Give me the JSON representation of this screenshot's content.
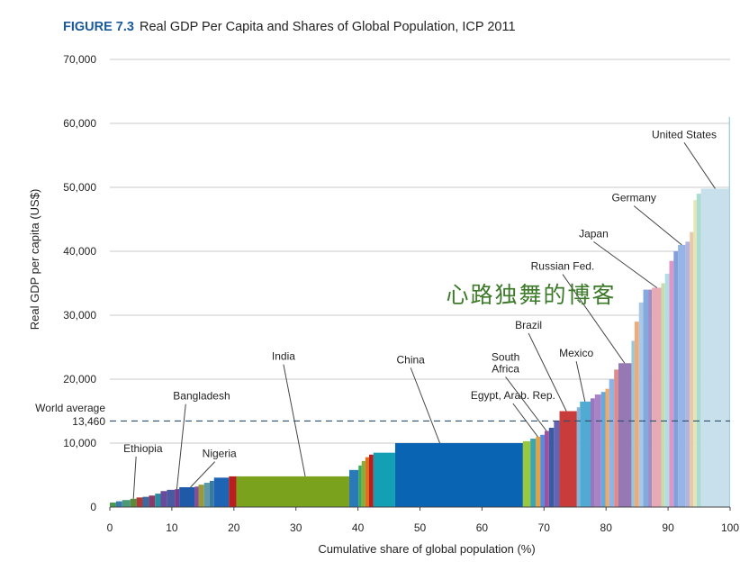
{
  "title": {
    "prefix": "FIGURE 7.3",
    "text": "Real GDP Per Capita and Shares of Global Population, ICP 2011"
  },
  "watermark": "心路独舞的博客",
  "chart_data": {
    "type": "bar",
    "title": "Real GDP Per Capita and Shares of Global Population, ICP 2011",
    "xlabel": "Cumulative share of global population (%)",
    "ylabel": "Real GDP per capita (US$)",
    "xlim": [
      0,
      100
    ],
    "ylim": [
      0,
      70000
    ],
    "x_ticks": [
      0,
      10,
      20,
      30,
      40,
      50,
      60,
      70,
      80,
      90,
      100
    ],
    "y_ticks": [
      {
        "value": 0,
        "label": "0"
      },
      {
        "value": 10000,
        "label": "10,000"
      },
      {
        "value": 20000,
        "label": "20,000"
      },
      {
        "value": 30000,
        "label": "30,000"
      },
      {
        "value": 40000,
        "label": "40,000"
      },
      {
        "value": 50000,
        "label": "50,000"
      },
      {
        "value": 60000,
        "label": "60,000"
      },
      {
        "value": 70000,
        "label": "70,000"
      }
    ],
    "grid": true,
    "reference_line": {
      "value": 13460,
      "label_line1": "World average",
      "label_line2": "13,460",
      "style": "dashed"
    },
    "bars": [
      {
        "x0": 0.0,
        "x1": 1.0,
        "value": 700,
        "color": "#4a9a4a"
      },
      {
        "x0": 1.0,
        "x1": 2.0,
        "value": 900,
        "color": "#3a7ab0"
      },
      {
        "x0": 2.0,
        "x1": 3.3,
        "value": 1100,
        "color": "#4a9a7a"
      },
      {
        "x0": 3.3,
        "x1": 4.3,
        "value": 1300,
        "color": "#5a8a3a"
      },
      {
        "x0": 4.3,
        "x1": 5.3,
        "value": 1500,
        "color": "#b03a3a"
      },
      {
        "x0": 5.3,
        "x1": 6.3,
        "value": 1600,
        "color": "#3a6aa0"
      },
      {
        "x0": 6.3,
        "x1": 7.3,
        "value": 1800,
        "color": "#8a3a6a"
      },
      {
        "x0": 7.3,
        "x1": 8.2,
        "value": 2100,
        "color": "#2a8aa0"
      },
      {
        "x0": 8.2,
        "x1": 9.2,
        "value": 2500,
        "color": "#6a4a9a"
      },
      {
        "x0": 9.2,
        "x1": 10.5,
        "value": 2700,
        "color": "#4a5aa0"
      },
      {
        "x0": 10.5,
        "x1": 11.2,
        "value": 2800,
        "color": "#7a3a8a"
      },
      {
        "x0": 11.2,
        "x1": 13.7,
        "value": 3100,
        "color": "#1e5aa8"
      },
      {
        "x0": 13.7,
        "x1": 14.3,
        "value": 3200,
        "color": "#8a4a9a"
      },
      {
        "x0": 14.3,
        "x1": 15.2,
        "value": 3500,
        "color": "#9a9a3a"
      },
      {
        "x0": 15.2,
        "x1": 16.1,
        "value": 3800,
        "color": "#5a9aaa"
      },
      {
        "x0": 16.1,
        "x1": 16.8,
        "value": 4100,
        "color": "#3a7aa0"
      },
      {
        "x0": 16.8,
        "x1": 19.2,
        "value": 4600,
        "color": "#1e64b4"
      },
      {
        "x0": 19.2,
        "x1": 20.4,
        "value": 4800,
        "color": "#b81e1e"
      },
      {
        "x0": 20.4,
        "x1": 38.6,
        "value": 4800,
        "color": "#7aa21c"
      },
      {
        "x0": 38.6,
        "x1": 40.1,
        "value": 5800,
        "color": "#2a7ab8"
      },
      {
        "x0": 40.1,
        "x1": 40.6,
        "value": 6500,
        "color": "#3aaa5a"
      },
      {
        "x0": 40.6,
        "x1": 41.2,
        "value": 7200,
        "color": "#8aaa3a"
      },
      {
        "x0": 41.2,
        "x1": 41.8,
        "value": 7800,
        "color": "#e07020"
      },
      {
        "x0": 41.8,
        "x1": 42.5,
        "value": 8200,
        "color": "#b81e1e"
      },
      {
        "x0": 42.5,
        "x1": 46.0,
        "value": 8500,
        "color": "#14a0b4"
      },
      {
        "x0": 46.0,
        "x1": 66.6,
        "value": 10000,
        "color": "#0a64b4"
      },
      {
        "x0": 66.6,
        "x1": 67.8,
        "value": 10300,
        "color": "#9ac83c"
      },
      {
        "x0": 67.8,
        "x1": 68.7,
        "value": 10700,
        "color": "#3ca5b4"
      },
      {
        "x0": 68.7,
        "x1": 69.4,
        "value": 11000,
        "color": "#e6a03c"
      },
      {
        "x0": 69.4,
        "x1": 70.1,
        "value": 11300,
        "color": "#5a8cdc"
      },
      {
        "x0": 70.1,
        "x1": 70.8,
        "value": 11900,
        "color": "#a050a0"
      },
      {
        "x0": 70.8,
        "x1": 71.6,
        "value": 12400,
        "color": "#3c5aa0"
      },
      {
        "x0": 71.6,
        "x1": 72.5,
        "value": 13500,
        "color": "#6464b4"
      },
      {
        "x0": 72.5,
        "x1": 75.3,
        "value": 15000,
        "color": "#c83c3c"
      },
      {
        "x0": 75.3,
        "x1": 75.8,
        "value": 15600,
        "color": "#82b4dc"
      },
      {
        "x0": 75.8,
        "x1": 77.5,
        "value": 16500,
        "color": "#50aad2"
      },
      {
        "x0": 77.5,
        "x1": 78.2,
        "value": 17000,
        "color": "#9678be"
      },
      {
        "x0": 78.2,
        "x1": 79.2,
        "value": 17600,
        "color": "#aa82c8"
      },
      {
        "x0": 79.2,
        "x1": 79.9,
        "value": 18000,
        "color": "#64aadc"
      },
      {
        "x0": 79.9,
        "x1": 80.5,
        "value": 18500,
        "color": "#f0aa64"
      },
      {
        "x0": 80.5,
        "x1": 81.3,
        "value": 20000,
        "color": "#8cb4e6"
      },
      {
        "x0": 81.3,
        "x1": 82.0,
        "value": 21500,
        "color": "#dc8c8c"
      },
      {
        "x0": 82.0,
        "x1": 84.1,
        "value": 22500,
        "color": "#9678b4"
      },
      {
        "x0": 84.1,
        "x1": 84.6,
        "value": 26000,
        "color": "#96c8dc"
      },
      {
        "x0": 84.6,
        "x1": 85.3,
        "value": 29000,
        "color": "#f0aa78"
      },
      {
        "x0": 85.3,
        "x1": 86.0,
        "value": 32000,
        "color": "#aac8e6"
      },
      {
        "x0": 86.0,
        "x1": 86.8,
        "value": 34000,
        "color": "#82aadc"
      },
      {
        "x0": 86.8,
        "x1": 87.4,
        "value": 34000,
        "color": "#a08cc8"
      },
      {
        "x0": 87.4,
        "x1": 88.9,
        "value": 34300,
        "color": "#e6aab4"
      },
      {
        "x0": 88.9,
        "x1": 89.5,
        "value": 35000,
        "color": "#c8dcaa"
      },
      {
        "x0": 89.5,
        "x1": 90.2,
        "value": 36500,
        "color": "#b4dce6"
      },
      {
        "x0": 90.2,
        "x1": 90.9,
        "value": 38500,
        "color": "#dc96c8"
      },
      {
        "x0": 90.9,
        "x1": 91.6,
        "value": 40000,
        "color": "#82a0dc"
      },
      {
        "x0": 91.6,
        "x1": 92.8,
        "value": 41000,
        "color": "#96b4e6"
      },
      {
        "x0": 92.8,
        "x1": 93.5,
        "value": 41500,
        "color": "#b4b4dc"
      },
      {
        "x0": 93.5,
        "x1": 94.1,
        "value": 43000,
        "color": "#e6c8aa"
      },
      {
        "x0": 94.1,
        "x1": 94.6,
        "value": 48000,
        "color": "#e6e6b4"
      },
      {
        "x0": 94.6,
        "x1": 95.3,
        "value": 49000,
        "color": "#aadcd2"
      },
      {
        "x0": 95.3,
        "x1": 99.8,
        "value": 49800,
        "color": "#c8e0ec"
      },
      {
        "x0": 99.8,
        "x1": 100.0,
        "value": 61000,
        "color": "#a0d2e6"
      }
    ],
    "annotations": [
      {
        "label": "Ethiopia",
        "text_x": 2.2,
        "text_y": 8600,
        "anchor": "start",
        "target_x": 3.8,
        "target_y": 1300
      },
      {
        "label": "Bangladesh",
        "text_x": 10.2,
        "text_y": 16800,
        "anchor": "start",
        "target_x": 10.8,
        "target_y": 2800
      },
      {
        "label": "Nigeria",
        "text_x": 14.9,
        "text_y": 7800,
        "anchor": "start",
        "target_x": 13.0,
        "target_y": 3100
      },
      {
        "label": "India",
        "text_x": 28.0,
        "text_y": 23000,
        "anchor": "middle",
        "target_x": 31.5,
        "target_y": 4800
      },
      {
        "label": "China",
        "text_x": 48.5,
        "text_y": 22500,
        "anchor": "middle",
        "target_x": 53.2,
        "target_y": 10000
      },
      {
        "label": "Egypt, Arab. Rep.",
        "text_x": 65.0,
        "text_y": 16900,
        "anchor": "middle",
        "target_x": 69.0,
        "target_y": 11000
      },
      {
        "label": "South",
        "label2": "Africa",
        "text_x": 63.8,
        "text_y": 22900,
        "anchor": "middle",
        "target_x": 70.4,
        "target_y": 11900
      },
      {
        "label": "Brazil",
        "text_x": 67.5,
        "text_y": 27900,
        "anchor": "middle",
        "target_x": 73.6,
        "target_y": 15000
      },
      {
        "label": "Mexico",
        "text_x": 75.2,
        "text_y": 23500,
        "anchor": "middle",
        "target_x": 76.6,
        "target_y": 16500
      },
      {
        "label": "Russian Fed.",
        "text_x": 73.0,
        "text_y": 37100,
        "anchor": "middle",
        "target_x": 83.0,
        "target_y": 22500
      },
      {
        "label": "Japan",
        "text_x": 78.0,
        "text_y": 42200,
        "anchor": "middle",
        "target_x": 88.2,
        "target_y": 34300
      },
      {
        "label": "Germany",
        "text_x": 84.5,
        "text_y": 47800,
        "anchor": "middle",
        "target_x": 92.2,
        "target_y": 41000
      },
      {
        "label": "United States",
        "text_x": 92.6,
        "text_y": 57700,
        "anchor": "middle",
        "target_x": 97.6,
        "target_y": 49800
      }
    ]
  }
}
